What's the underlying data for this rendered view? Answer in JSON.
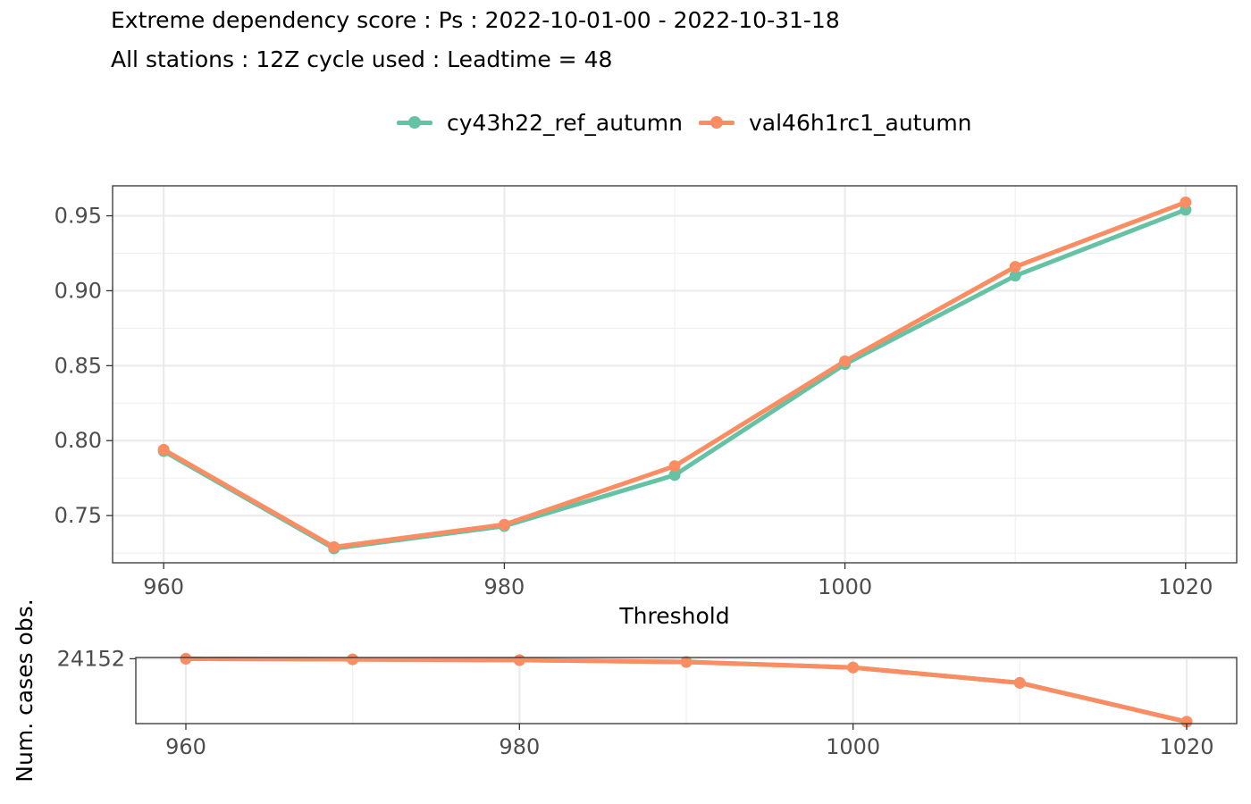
{
  "title_line1": "Extreme dependency score : Ps : 2022-10-01-00 - 2022-10-31-18",
  "title_line2": "All stations : 12Z cycle used : Leadtime = 48",
  "chart_data": [
    {
      "type": "line",
      "xlabel": "Threshold",
      "ylabel": "",
      "x": [
        960,
        970,
        980,
        990,
        1000,
        1010,
        1020
      ],
      "xlim": [
        957,
        1023
      ],
      "ylim": [
        0.7185,
        0.97
      ],
      "xticks": [
        960,
        980,
        1000,
        1020
      ],
      "yticks": [
        0.75,
        0.8,
        0.85,
        0.9,
        0.95
      ],
      "legend": "top",
      "grid": true,
      "series": [
        {
          "name": "cy43h22_ref_autumn",
          "color": "#66c2a5",
          "values": [
            0.793,
            0.728,
            0.743,
            0.777,
            0.851,
            0.91,
            0.954
          ]
        },
        {
          "name": "val46h1rc1_autumn",
          "color": "#fc8d62",
          "values": [
            0.794,
            0.729,
            0.744,
            0.783,
            0.853,
            0.916,
            0.959
          ]
        }
      ]
    },
    {
      "type": "line",
      "xlabel": "",
      "ylabel": "Num. cases obs.",
      "x": [
        960,
        970,
        980,
        990,
        1000,
        1010,
        1020
      ],
      "xlim": [
        957,
        1023
      ],
      "ylim": [
        20650,
        24220
      ],
      "xticks": [
        960,
        980,
        1000,
        1020
      ],
      "yticks": [
        24152
      ],
      "grid": true,
      "series": [
        {
          "name": "cy43h22_ref_autumn",
          "color": "#66c2a5",
          "values": [
            24152,
            24120,
            24080,
            23980,
            23680,
            22850,
            20750
          ]
        },
        {
          "name": "val46h1rc1_autumn",
          "color": "#fc8d62",
          "values": [
            24152,
            24120,
            24080,
            23980,
            23680,
            22850,
            20750
          ]
        }
      ]
    }
  ]
}
